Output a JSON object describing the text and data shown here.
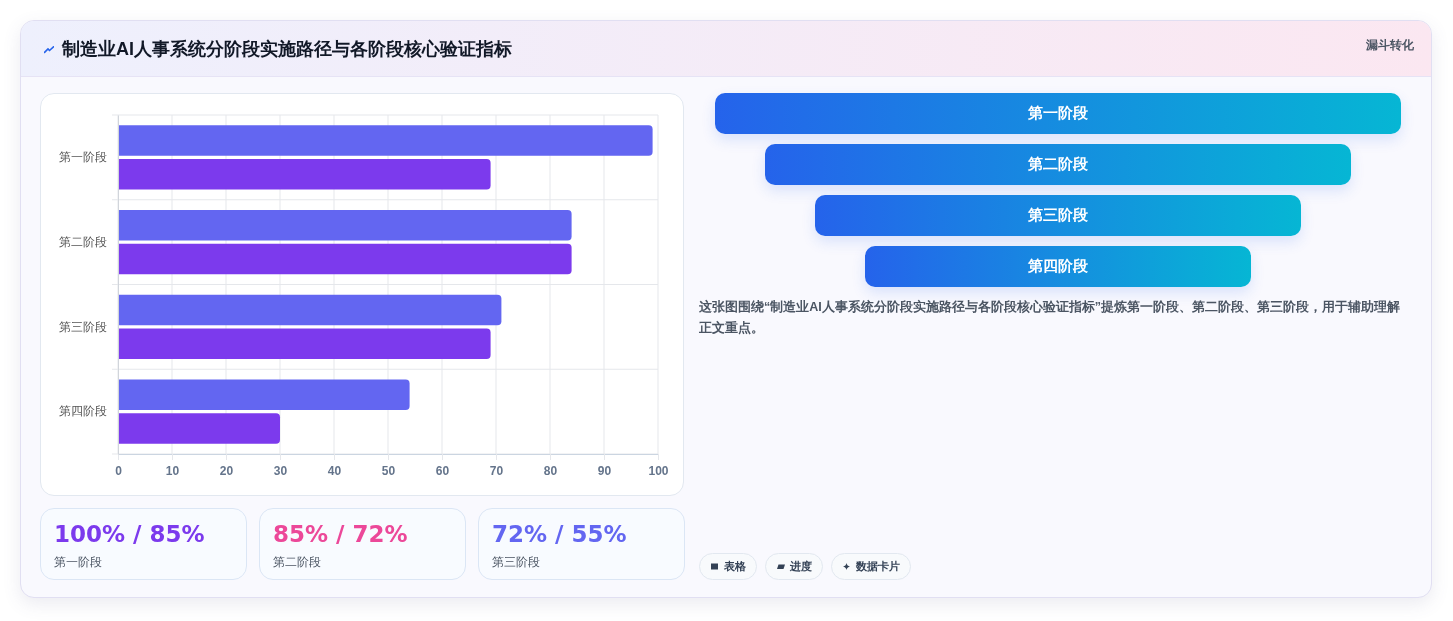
{
  "chart_data": [
    {
      "type": "bar",
      "title": "制造业AI人事系统分阶段实施路径与各阶段核心验证指标",
      "orientation": "horizontal",
      "categories": [
        "第一阶段",
        "第二阶段",
        "第三阶段",
        "第四阶段"
      ],
      "series": [
        {
          "color": "#6366f1",
          "values": [
            99,
            84,
            71,
            54
          ]
        },
        {
          "color": "#7c3aed",
          "values": [
            69,
            84,
            69,
            30
          ]
        }
      ],
      "xlim": [
        0,
        100
      ],
      "xticks": [
        0,
        10,
        20,
        30,
        40,
        50,
        60,
        70,
        80,
        90,
        100
      ],
      "grid": true
    },
    {
      "type": "other",
      "title": "漏斗转化",
      "categories": [
        "第一阶段",
        "第二阶段",
        "第三阶段",
        "第四阶段"
      ],
      "colors": [
        "#2563eb",
        "#2563eb",
        "#2563eb",
        "#2563eb"
      ],
      "annotations": [
        "这张图围绕“制造业AI人事系统分阶段实施路径与各阶段核心验证指标”提炼第一阶段、第二阶段、第三阶段，用于辅助理解正文重点。",
        "表格",
        "进度",
        "数据卡片"
      ]
    },
    {
      "type": "other",
      "categories": [
        "第一阶段",
        "第二阶段",
        "第三阶段"
      ],
      "annotations": [
        "100% / 85%",
        "85% / 72%",
        "72% / 55%"
      ]
    }
  ]
}
